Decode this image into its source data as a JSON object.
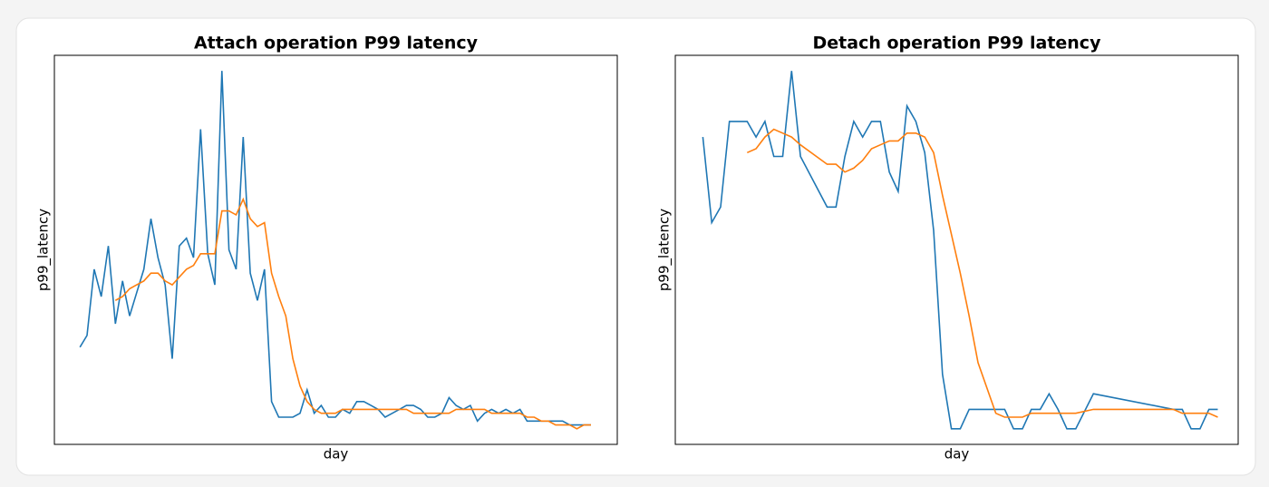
{
  "chart_data": [
    {
      "type": "line",
      "title": "Attach operation P99 latency",
      "x_label": "day",
      "y_label": "p99_latency",
      "xlim": [
        -3.6,
        75.7
      ],
      "ylim": [
        0,
        100
      ],
      "series": [
        {
          "color": "#1f77b4",
          "values": [
            25,
            28,
            45,
            38,
            51,
            31,
            42,
            33,
            39,
            45,
            58,
            48,
            41,
            22,
            51,
            53,
            48,
            81,
            49,
            41,
            96,
            50,
            45,
            79,
            44,
            37,
            45,
            11,
            7,
            7,
            7,
            8,
            14,
            8,
            10,
            7,
            7,
            9,
            8,
            11,
            11,
            10,
            9,
            7,
            8,
            9,
            10,
            10,
            9,
            7,
            7,
            8,
            12,
            10,
            9,
            10,
            6,
            8,
            9,
            8,
            9,
            8,
            9,
            6,
            6,
            6,
            6,
            6,
            6,
            5,
            5,
            5,
            5
          ]
        },
        {
          "color": "#ff7f0e",
          "values": [
            null,
            null,
            null,
            null,
            null,
            37,
            38,
            40,
            41,
            42,
            44,
            44,
            42,
            41,
            43,
            45,
            46,
            49,
            49,
            49,
            60,
            60,
            59,
            63,
            58,
            56,
            57,
            44,
            38,
            33,
            22,
            15,
            11,
            9,
            8,
            8,
            8,
            9,
            9,
            9,
            9,
            9,
            9,
            9,
            9,
            9,
            9,
            8,
            8,
            8,
            8,
            8,
            8,
            9,
            9,
            9,
            9,
            9,
            8,
            8,
            8,
            8,
            8,
            7,
            7,
            6,
            6,
            5,
            5,
            5,
            4,
            5,
            5
          ]
        }
      ]
    },
    {
      "type": "line",
      "title": "Detach operation P99 latency",
      "x_label": "day",
      "y_label": "p99_latency",
      "xlim": [
        -3.1,
        60.3
      ],
      "ylim": [
        0,
        100
      ],
      "x": [
        0,
        1,
        2,
        3,
        5,
        6,
        7,
        8,
        9,
        10,
        11,
        14,
        15,
        16,
        17,
        18,
        19,
        20,
        21,
        22,
        23,
        24,
        25,
        26,
        27,
        28,
        29,
        30,
        31,
        33,
        34,
        35,
        36,
        37,
        38,
        39,
        40,
        41,
        42,
        44,
        53,
        54,
        55,
        56,
        57,
        58
      ],
      "series": [
        {
          "color": "#1f77b4",
          "values": [
            79,
            57,
            61,
            83,
            83,
            79,
            83,
            74,
            74,
            96,
            74,
            61,
            61,
            74,
            83,
            79,
            83,
            83,
            70,
            65,
            87,
            83,
            75,
            55,
            18,
            4,
            4,
            9,
            9,
            9,
            9,
            4,
            4,
            9,
            9,
            13,
            9,
            4,
            4,
            13,
            9,
            9,
            4,
            4,
            9,
            9
          ]
        },
        {
          "color": "#ff7f0e",
          "values": [
            null,
            null,
            null,
            null,
            75,
            76,
            79,
            81,
            80,
            79,
            77,
            72,
            72,
            70,
            71,
            73,
            76,
            77,
            78,
            78,
            80,
            80,
            79,
            75,
            64,
            54,
            44,
            33,
            21,
            8,
            7,
            7,
            7,
            8,
            8,
            8,
            8,
            8,
            8,
            9,
            9,
            8,
            8,
            8,
            8,
            7
          ]
        }
      ]
    }
  ]
}
